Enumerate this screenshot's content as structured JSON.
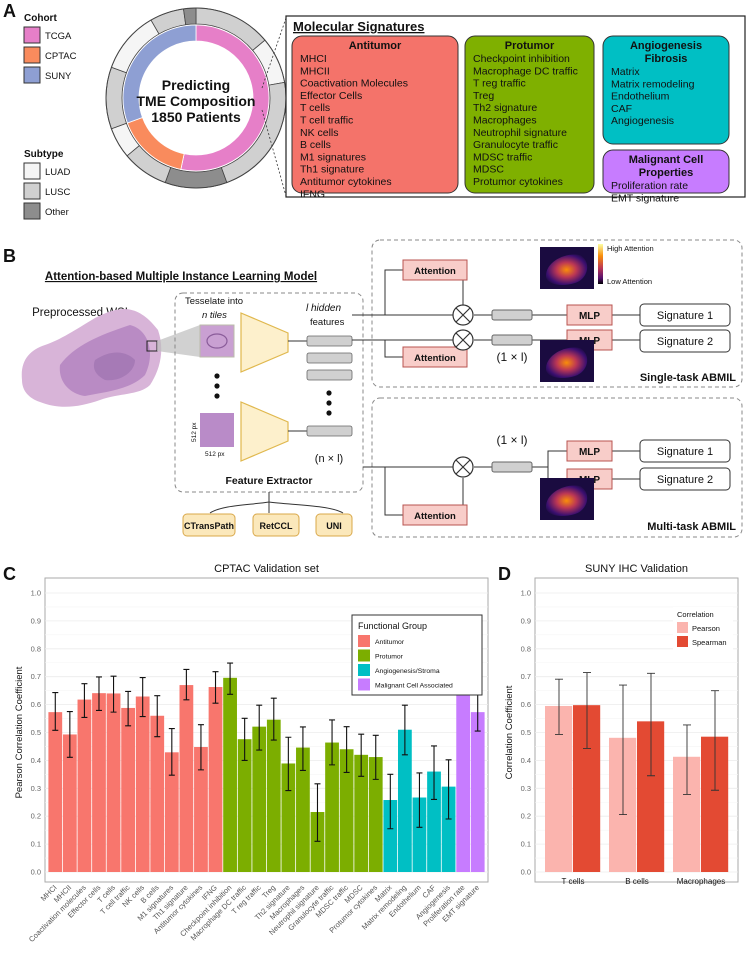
{
  "panel_a": {
    "label": "A",
    "cohort_title": "Cohort",
    "cohorts": [
      {
        "name": "TCGA",
        "color": "#e67fc8"
      },
      {
        "name": "CPTAC",
        "color": "#f98b5d"
      },
      {
        "name": "SUNY",
        "color": "#8e9fd3"
      }
    ],
    "subtype_title": "Subtype",
    "subtypes": [
      {
        "name": "LUAD",
        "color": "#f5f5f5"
      },
      {
        "name": "LUSC",
        "color": "#d0d0d0"
      },
      {
        "name": "Other",
        "color": "#8d8d8d"
      }
    ],
    "center_text": [
      "Predicting",
      "TME Composition",
      "1850 Patients"
    ],
    "signatures_title": "Molecular Signatures",
    "groups": [
      {
        "title": [
          "Antitumor"
        ],
        "color": "#f4736a",
        "items": [
          "MHCI",
          "MHCII",
          "Coactivation Molecules",
          "Effector Cells",
          "T cells",
          "T cell traffic",
          "NK cells",
          "B cells",
          "M1 signatures",
          "Th1 signature",
          "Antitumor cytokines",
          "IFNG"
        ]
      },
      {
        "title": [
          "Protumor"
        ],
        "color": "#7fb000",
        "items": [
          "Checkpoint inhibition",
          "Macrophage DC traffic",
          "T reg traffic",
          "Treg",
          "Th2 signature",
          "Macrophages",
          "Neutrophil signature",
          "Granulocyte traffic",
          "MDSC traffic",
          "MDSC",
          "Protumor cytokines"
        ]
      },
      {
        "title": [
          "Angiogenesis",
          "Fibrosis"
        ],
        "color": "#00bfc4",
        "items": [
          "Matrix",
          "Matrix remodeling",
          "Endothelium",
          "CAF",
          "Angiogenesis"
        ]
      },
      {
        "title": [
          "Malignant Cell",
          "Properties"
        ],
        "color": "#c77cff",
        "items": [
          "Proliferation rate",
          "EMT signature"
        ]
      }
    ]
  },
  "panel_b": {
    "label": "B",
    "title": "Attention-based Multiple Instance Learning Model",
    "wsi_label": "Preprocessed WSI",
    "tesselate": "Tesselate into",
    "n_tiles": "n  tiles",
    "hidden": "l  hidden",
    "features": "features",
    "px_v": "512 px",
    "px_h": "512 px",
    "nxl": "(n × l)",
    "one_l": "(1 × l)",
    "feature_extractor": "Feature Extractor",
    "extractors": [
      "CTransPath",
      "RetCCL",
      "UNI"
    ],
    "attention": "Attention",
    "mlp": "MLP",
    "signature1": "Signature 1",
    "signature2": "Signature 2",
    "high_attention": "High Attention",
    "low_attention": "Low Attention",
    "single_task": "Single-task ABMIL",
    "multi_task": "Multi-task ABMIL"
  },
  "panel_c": {
    "label": "C"
  },
  "panel_d": {
    "label": "D"
  },
  "chart_data": [
    {
      "type": "bar",
      "title": "CPTAC Validation set",
      "xlabel": "",
      "ylabel": "Pearson Correlation Coefficient",
      "ylim": [
        0,
        1.0
      ],
      "yticks": [
        "0.0",
        "0.1",
        "0.2",
        "0.3",
        "0.4",
        "0.5",
        "0.6",
        "0.7",
        "0.8",
        "0.9",
        "1.0"
      ],
      "grid": true,
      "legend_title": "Functional Group",
      "legend_position": "top-right",
      "groups": [
        {
          "name": "Antitumor",
          "color": "#f8766d"
        },
        {
          "name": "Protumor",
          "color": "#7cae00"
        },
        {
          "name": "Angiogenesis/Stroma",
          "color": "#00bfc4"
        },
        {
          "name": "Malignant Cell Associated",
          "color": "#c77cff"
        }
      ],
      "categories": [
        "MHCI",
        "MHCII",
        "Coactivation molecules",
        "Effector cells",
        "T cells",
        "T cell traffic",
        "NK cells",
        "B cells",
        "M1 signatures",
        "Th1 signature",
        "Antitumor cytokines",
        "IFNG",
        "Checkpoint inhibition",
        "Macrophage DC traffic",
        "T reg traffic",
        "Treg",
        "Th2 signature",
        "Macrophages",
        "Neutrophil signature",
        "Granulocyte traffic",
        "MDSC traffic",
        "MDSC",
        "Protumor cytokines",
        "Matrix",
        "Matrix remodeling",
        "Endothelium",
        "CAF",
        "Angiogenesis",
        "Proliferation rate",
        "EMT signature"
      ],
      "group_index": [
        0,
        0,
        0,
        0,
        0,
        0,
        0,
        0,
        0,
        0,
        0,
        0,
        1,
        1,
        1,
        1,
        1,
        1,
        1,
        1,
        1,
        1,
        1,
        2,
        2,
        2,
        2,
        2,
        3,
        3
      ],
      "values": [
        0.573,
        0.493,
        0.618,
        0.641,
        0.64,
        0.588,
        0.629,
        0.56,
        0.429,
        0.67,
        0.448,
        0.663,
        0.696,
        0.476,
        0.521,
        0.546,
        0.389,
        0.446,
        0.215,
        0.464,
        0.44,
        0.42,
        0.412,
        0.258,
        0.51,
        0.267,
        0.36,
        0.306,
        0.731,
        0.573
      ],
      "err_low": [
        0.508,
        0.411,
        0.554,
        0.579,
        0.573,
        0.524,
        0.557,
        0.485,
        0.347,
        0.617,
        0.366,
        0.605,
        0.637,
        0.4,
        0.437,
        0.473,
        0.292,
        0.364,
        0.11,
        0.384,
        0.357,
        0.343,
        0.332,
        0.155,
        0.42,
        0.16,
        0.26,
        0.19,
        0.68,
        0.505
      ],
      "err_high": [
        0.643,
        0.575,
        0.675,
        0.699,
        0.702,
        0.647,
        0.697,
        0.632,
        0.514,
        0.726,
        0.528,
        0.718,
        0.749,
        0.551,
        0.598,
        0.623,
        0.483,
        0.52,
        0.316,
        0.545,
        0.521,
        0.494,
        0.49,
        0.35,
        0.598,
        0.355,
        0.452,
        0.402,
        0.776,
        0.636
      ]
    },
    {
      "type": "bar",
      "title": "SUNY IHC Validation",
      "xlabel": "",
      "ylabel": "Correlation Coefficient",
      "ylim": [
        0,
        1.0
      ],
      "yticks": [
        "0.0",
        "0.1",
        "0.2",
        "0.3",
        "0.4",
        "0.5",
        "0.6",
        "0.7",
        "0.8",
        "0.9",
        "1.0"
      ],
      "grid": true,
      "legend_title": "Correlation",
      "legend_position": "top-right",
      "categories": [
        "T cells",
        "B cells",
        "Macrophages"
      ],
      "series": [
        {
          "name": "Pearson",
          "color": "#fbb4ae",
          "values": [
            0.595,
            0.481,
            0.413
          ],
          "err_low": [
            0.493,
            0.206,
            0.278
          ],
          "err_high": [
            0.691,
            0.67,
            0.527
          ]
        },
        {
          "name": "Spearman",
          "color": "#e34a33",
          "values": [
            0.598,
            0.54,
            0.485
          ],
          "err_low": [
            0.443,
            0.345,
            0.293
          ],
          "err_high": [
            0.715,
            0.712,
            0.65
          ]
        }
      ]
    }
  ]
}
